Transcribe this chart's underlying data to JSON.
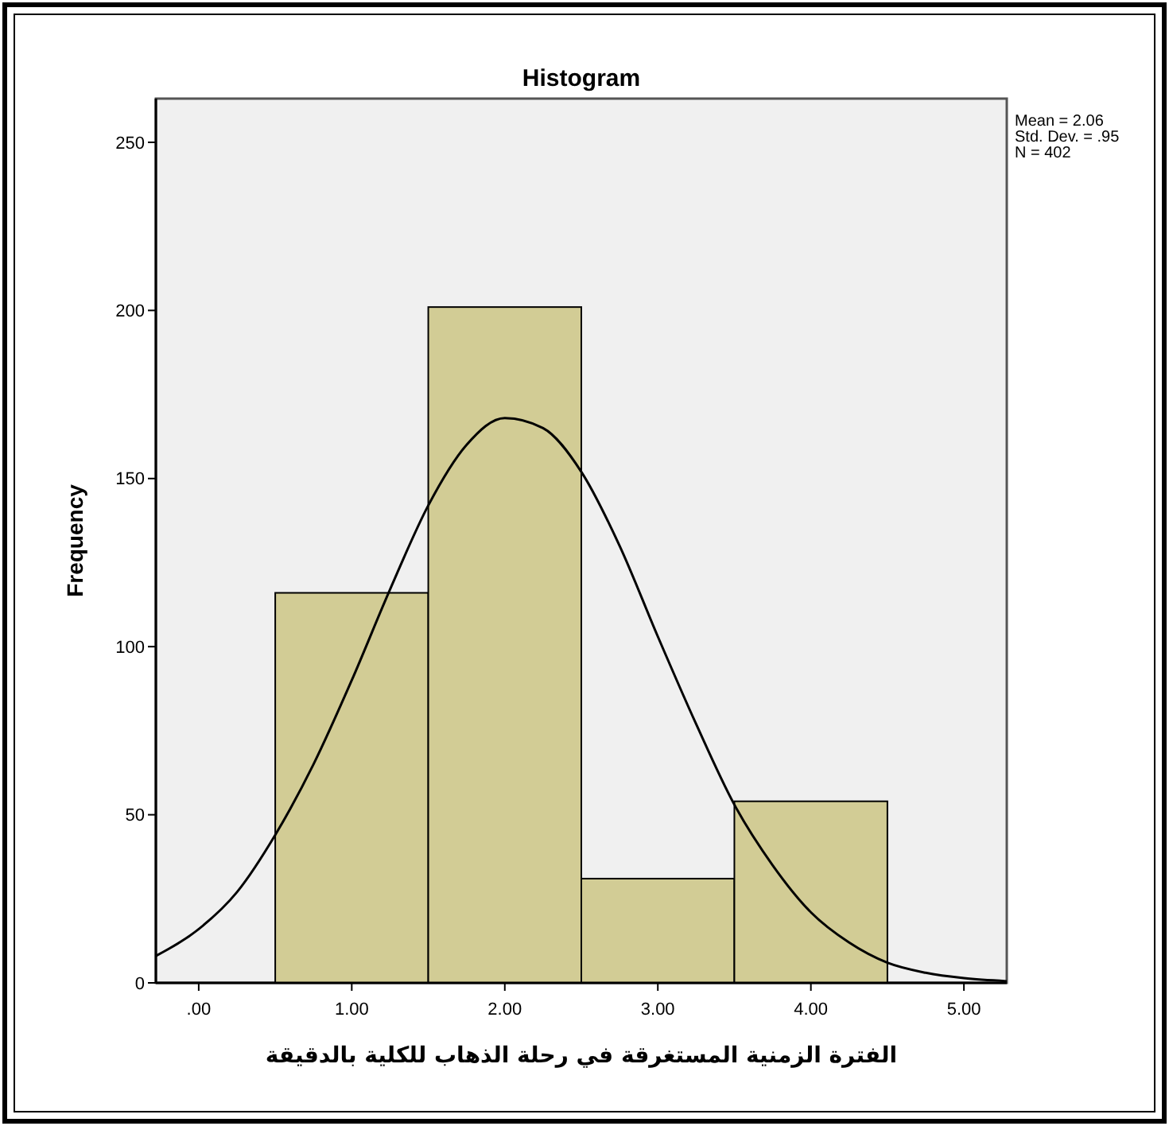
{
  "chart_data": {
    "type": "histogram",
    "title": "Histogram",
    "xlabel": "الفترة الزمنية المستغرقة في رحلة الذهاب للكلية بالدقيقة",
    "ylabel": "Frequency",
    "bins": [
      0.5,
      1.5,
      2.5,
      3.5,
      4.5
    ],
    "values": [
      116,
      201,
      31,
      54
    ],
    "color": "#d2cc95",
    "series": [
      {
        "type": "line",
        "color": "#000000",
        "x": [
          -0.28,
          0,
          0.25,
          0.5,
          0.75,
          1,
          1.25,
          1.5,
          1.75,
          2,
          2.25,
          2.5,
          2.75,
          3,
          3.25,
          3.5,
          3.75,
          4,
          4.25,
          4.5,
          4.75,
          5,
          5.28
        ],
        "values": [
          8,
          16,
          27,
          44,
          65,
          90,
          117,
          142,
          160,
          168,
          165,
          152,
          130,
          103,
          77,
          53,
          35,
          21,
          12,
          6,
          3,
          1.4,
          0.5
        ]
      }
    ],
    "xlim": [
      -0.28,
      5.28
    ],
    "xticks": [
      {
        "value": 0,
        "label": ".00"
      },
      {
        "value": 1,
        "label": "1.00"
      },
      {
        "value": 2,
        "label": "2.00"
      },
      {
        "value": 3,
        "label": "3.00"
      },
      {
        "value": 4,
        "label": "4.00"
      },
      {
        "value": 5,
        "label": "5.00"
      }
    ],
    "ylim": [
      0,
      263
    ],
    "yticks": [
      0,
      50,
      100,
      150,
      200,
      250
    ],
    "annotations": [
      "Mean = 2.06",
      "Std. Dev. = .95",
      "N = 402"
    ],
    "grid": false
  }
}
